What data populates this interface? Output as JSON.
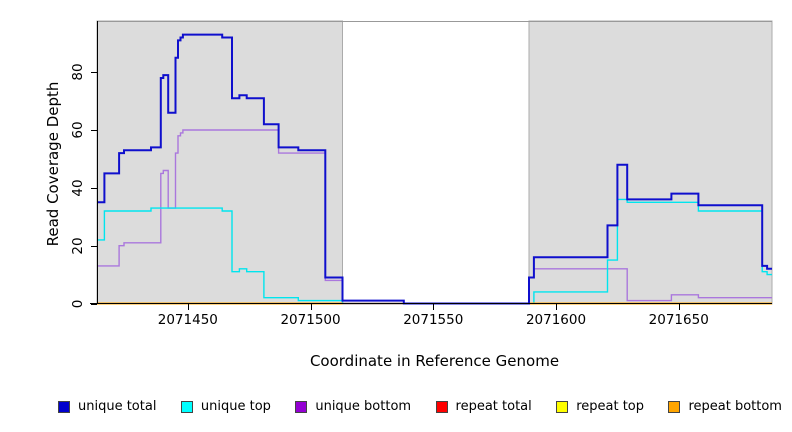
{
  "chart_data": {
    "type": "line",
    "subtype": "step-coverage-plot",
    "title": "",
    "xlabel": "Coordinate in Reference Genome",
    "ylabel": "Read Coverage Depth",
    "xlim": [
      2071413,
      2071688
    ],
    "ylim": [
      0,
      97.7
    ],
    "x_ticks": [
      2071450,
      2071500,
      2071550,
      2071600,
      2071650
    ],
    "y_ticks": [
      0,
      20,
      40,
      60,
      80
    ],
    "grid": false,
    "legend_position": "bottom",
    "background_color": "#ffffff",
    "shaded_region_color": "#DCDCDC",
    "shaded_region_border": "#ABABAB",
    "shaded_regions": [
      {
        "x1": 2071413,
        "x2": 2071513
      },
      {
        "x1": 2071589,
        "x2": 2071688
      }
    ],
    "legend": [
      {
        "label": "unique total",
        "color": "#0000CD"
      },
      {
        "label": "unique top",
        "color": "#00FFFF"
      },
      {
        "label": "unique bottom",
        "color": "#9400D3"
      },
      {
        "label": "repeat total",
        "color": "#FF0000"
      },
      {
        "label": "repeat top",
        "color": "#FFFF00"
      },
      {
        "label": "repeat bottom",
        "color": "#FFA500"
      }
    ],
    "series": [
      {
        "name": "repeat top",
        "color": "#FFFF00",
        "width": 1.4,
        "segments": [
          {
            "steps": [
              [
                2071413,
                0
              ]
            ],
            "end": 2071688
          }
        ]
      },
      {
        "name": "unique bottom",
        "color": "#AA77DD",
        "width": 1.4,
        "segments": [
          {
            "steps": [
              [
                2071413,
                13
              ],
              [
                2071422,
                20
              ],
              [
                2071424,
                21
              ],
              [
                2071439,
                45
              ],
              [
                2071440,
                46
              ],
              [
                2071442,
                33
              ],
              [
                2071445,
                52
              ],
              [
                2071446,
                58
              ],
              [
                2071447,
                59
              ],
              [
                2071448,
                60
              ],
              [
                2071487,
                52
              ],
              [
                2071506,
                8
              ],
              [
                2071513,
                0
              ],
              [
                2071589,
                9
              ],
              [
                2071591,
                12
              ],
              [
                2071629,
                1
              ],
              [
                2071647,
                3
              ],
              [
                2071658,
                2
              ]
            ],
            "end": 2071688
          }
        ]
      },
      {
        "name": "unique top",
        "color": "#00E5EE",
        "width": 1.4,
        "segments": [
          {
            "steps": [
              [
                2071413,
                22
              ],
              [
                2071416,
                32
              ],
              [
                2071435,
                33
              ],
              [
                2071464,
                32
              ],
              [
                2071468,
                11
              ],
              [
                2071471,
                12
              ],
              [
                2071474,
                11
              ],
              [
                2071481,
                2
              ],
              [
                2071495,
                1
              ],
              [
                2071513,
                0
              ],
              [
                2071591,
                4
              ],
              [
                2071621,
                15
              ],
              [
                2071625,
                36
              ],
              [
                2071629,
                35
              ],
              [
                2071658,
                32
              ],
              [
                2071684,
                11
              ],
              [
                2071686,
                10
              ]
            ],
            "end": 2071688
          }
        ]
      },
      {
        "name": "repeat total",
        "color": "#EE5555",
        "width": 1.4,
        "segments": [
          {
            "steps": [
              [
                2071413,
                0
              ]
            ],
            "end": 2071541
          }
        ]
      },
      {
        "name": "repeat bottom",
        "color": "#FFA500",
        "width": 2,
        "segments": [
          {
            "steps": [
              [
                2071413,
                0
              ]
            ],
            "end": 2071513
          },
          {
            "steps": [
              [
                2071589,
                0
              ]
            ],
            "end": 2071688
          }
        ]
      },
      {
        "name": "unique total",
        "color": "#0F0FCD",
        "width": 2,
        "segments": [
          {
            "steps": [
              [
                2071413,
                35
              ],
              [
                2071416,
                45
              ],
              [
                2071422,
                52
              ],
              [
                2071424,
                53
              ],
              [
                2071435,
                54
              ],
              [
                2071439,
                78
              ],
              [
                2071440,
                79
              ],
              [
                2071442,
                66
              ],
              [
                2071445,
                85
              ],
              [
                2071446,
                91
              ],
              [
                2071447,
                92
              ],
              [
                2071448,
                93
              ],
              [
                2071464,
                92
              ],
              [
                2071468,
                71
              ],
              [
                2071471,
                72
              ],
              [
                2071474,
                71
              ],
              [
                2071481,
                62
              ],
              [
                2071487,
                54
              ],
              [
                2071495,
                53
              ],
              [
                2071506,
                9
              ],
              [
                2071513,
                1
              ],
              [
                2071538,
                0
              ],
              [
                2071589,
                9
              ],
              [
                2071591,
                16
              ],
              [
                2071621,
                27
              ],
              [
                2071625,
                48
              ],
              [
                2071629,
                36
              ],
              [
                2071647,
                38
              ],
              [
                2071658,
                34
              ],
              [
                2071684,
                13
              ],
              [
                2071686,
                12
              ]
            ],
            "end": 2071688
          }
        ]
      }
    ]
  }
}
